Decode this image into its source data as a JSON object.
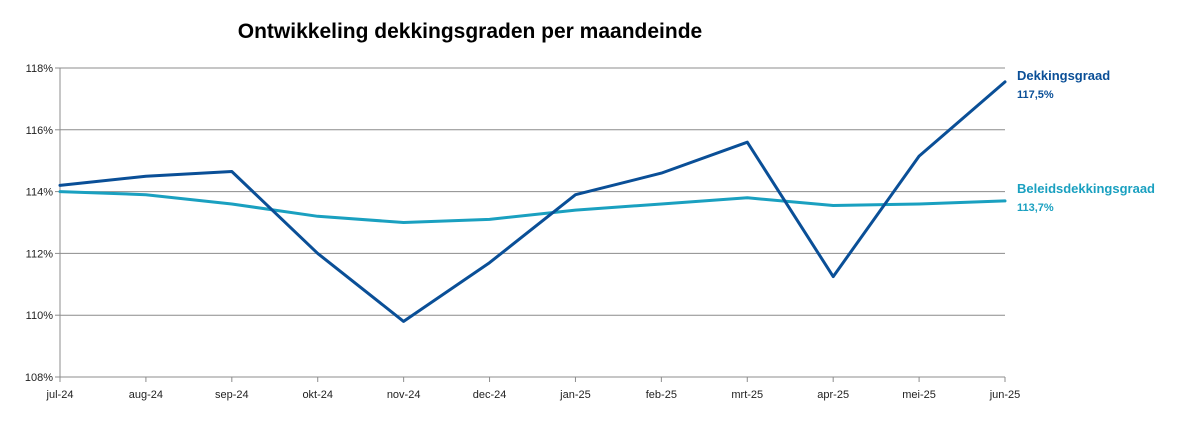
{
  "chart_data": {
    "type": "line",
    "title": "Ontwikkeling dekkingsgraden per maandeinde",
    "xlabel": "",
    "ylabel": "",
    "categories": [
      "jul-24",
      "aug-24",
      "sep-24",
      "okt-24",
      "nov-24",
      "dec-24",
      "jan-25",
      "feb-25",
      "mrt-25",
      "apr-25",
      "mei-25",
      "jun-25"
    ],
    "ylim": [
      108,
      118
    ],
    "yticks": [
      108,
      110,
      112,
      114,
      116,
      118
    ],
    "ytick_labels": [
      "108%",
      "110%",
      "112%",
      "114%",
      "116%",
      "118%"
    ],
    "grid": "horizontal",
    "series": [
      {
        "name": "Dekkingsgraad",
        "end_label": "117,5%",
        "color": "#0a4f97",
        "values": [
          114.2,
          114.5,
          114.65,
          112.0,
          109.8,
          111.7,
          113.9,
          114.6,
          115.6,
          111.25,
          115.15,
          117.55
        ]
      },
      {
        "name": "Beleidsdekkingsgraad",
        "end_label": "113,7%",
        "color": "#1aa0c0",
        "values": [
          114.0,
          113.9,
          113.6,
          113.2,
          113.0,
          113.1,
          113.4,
          113.6,
          113.8,
          113.55,
          113.6,
          113.7
        ]
      }
    ]
  }
}
